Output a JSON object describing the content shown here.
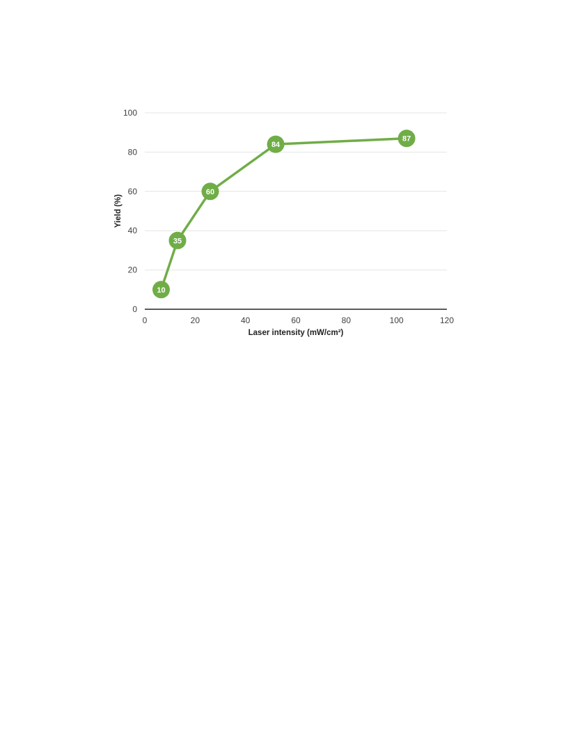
{
  "chart_data": {
    "type": "line",
    "title": "",
    "xlabel": "Laser intensity (mW/cm²)",
    "ylabel": "Yield (%)",
    "xlim": [
      0,
      120
    ],
    "ylim": [
      0,
      100
    ],
    "xticks": [
      0,
      20,
      40,
      60,
      80,
      100,
      120
    ],
    "yticks": [
      0,
      20,
      40,
      60,
      80,
      100
    ],
    "grid": "horizontal",
    "legend": "none",
    "series": [
      {
        "color": "#70ad47",
        "marker": "circle",
        "data_labels": true,
        "x": [
          6.5,
          13,
          26,
          52,
          104
        ],
        "y": [
          10,
          35,
          60,
          84,
          87
        ],
        "labels": [
          "10",
          "35",
          "60",
          "84",
          "87"
        ]
      }
    ]
  }
}
